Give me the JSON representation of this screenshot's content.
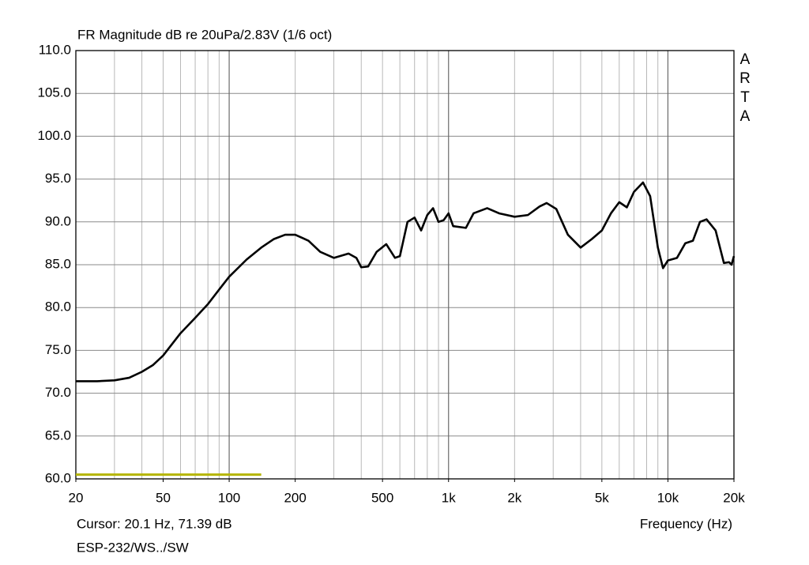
{
  "chart_data": {
    "type": "line",
    "title": "FR Magnitude dB re 20uPa/2.83V (1/6 oct)",
    "brand": "ARTA",
    "cursor_text": "Cursor: 20.1 Hz, 71.39 dB",
    "x_label": "Frequency (Hz)",
    "footer": "ESP-232/WS../SW",
    "x_log": true,
    "xlim": [
      20,
      20000
    ],
    "ylim": [
      60,
      110
    ],
    "xticks": [
      20,
      50,
      100,
      200,
      500,
      {
        "value": 1000,
        "label": "1k"
      },
      {
        "value": 2000,
        "label": "2k"
      },
      {
        "value": 5000,
        "label": "5k"
      },
      {
        "value": 10000,
        "label": "10k"
      },
      {
        "value": 20000,
        "label": "20k"
      }
    ],
    "x_major_grid": [
      100,
      1000,
      10000
    ],
    "x_minor_grid": [
      30,
      40,
      50,
      60,
      70,
      80,
      90,
      200,
      300,
      400,
      500,
      600,
      700,
      800,
      900,
      2000,
      3000,
      4000,
      5000,
      6000,
      7000,
      8000,
      9000
    ],
    "yticks": [
      {
        "value": 60,
        "label": "60.0"
      },
      {
        "value": 65,
        "label": "65.0"
      },
      {
        "value": 70,
        "label": "70.0"
      },
      {
        "value": 75,
        "label": "75.0"
      },
      {
        "value": 80,
        "label": "80.0"
      },
      {
        "value": 85,
        "label": "85.0"
      },
      {
        "value": 90,
        "label": "90.0"
      },
      {
        "value": 95,
        "label": "95.0"
      },
      {
        "value": 100,
        "label": "100.0"
      },
      {
        "value": 105,
        "label": "105.0"
      },
      {
        "value": 110,
        "label": "110.0"
      }
    ],
    "grid": true,
    "x": [
      20,
      25,
      30,
      35,
      40,
      45,
      50,
      60,
      70,
      80,
      90,
      100,
      120,
      140,
      160,
      180,
      200,
      230,
      260,
      300,
      350,
      380,
      400,
      430,
      470,
      520,
      570,
      600,
      650,
      700,
      750,
      800,
      850,
      900,
      950,
      1000,
      1050,
      1200,
      1300,
      1500,
      1700,
      2000,
      2300,
      2600,
      2800,
      3100,
      3500,
      4000,
      4500,
      5000,
      5500,
      6000,
      6500,
      7000,
      7700,
      8300,
      9000,
      9500,
      10000,
      11000,
      12000,
      13000,
      14000,
      15000,
      16500,
      18000,
      19000,
      19500,
      20000
    ],
    "series": [
      {
        "color": "#000000",
        "values": [
          71.4,
          71.4,
          71.5,
          71.8,
          72.5,
          73.3,
          74.4,
          77.0,
          78.8,
          80.4,
          82.1,
          83.6,
          85.6,
          87.0,
          88.0,
          88.5,
          88.5,
          87.8,
          86.5,
          85.8,
          86.3,
          85.8,
          84.7,
          84.8,
          86.5,
          87.4,
          85.8,
          86.0,
          90.0,
          90.5,
          89.0,
          90.8,
          91.6,
          90.0,
          90.2,
          91.0,
          89.5,
          89.3,
          91.0,
          91.6,
          91.0,
          90.6,
          90.8,
          91.8,
          92.2,
          91.5,
          88.5,
          87.0,
          88.0,
          89.0,
          91.0,
          92.3,
          91.7,
          93.5,
          94.6,
          93.0,
          87.0,
          84.6,
          85.5,
          85.8,
          87.5,
          87.8,
          90.0,
          90.3,
          89.0,
          85.2,
          85.3,
          85.0,
          86.0
        ]
      }
    ],
    "marker_line": {
      "x": [
        20,
        140
      ],
      "y": [
        60.5,
        60.5
      ],
      "color": "#b5b500"
    }
  }
}
